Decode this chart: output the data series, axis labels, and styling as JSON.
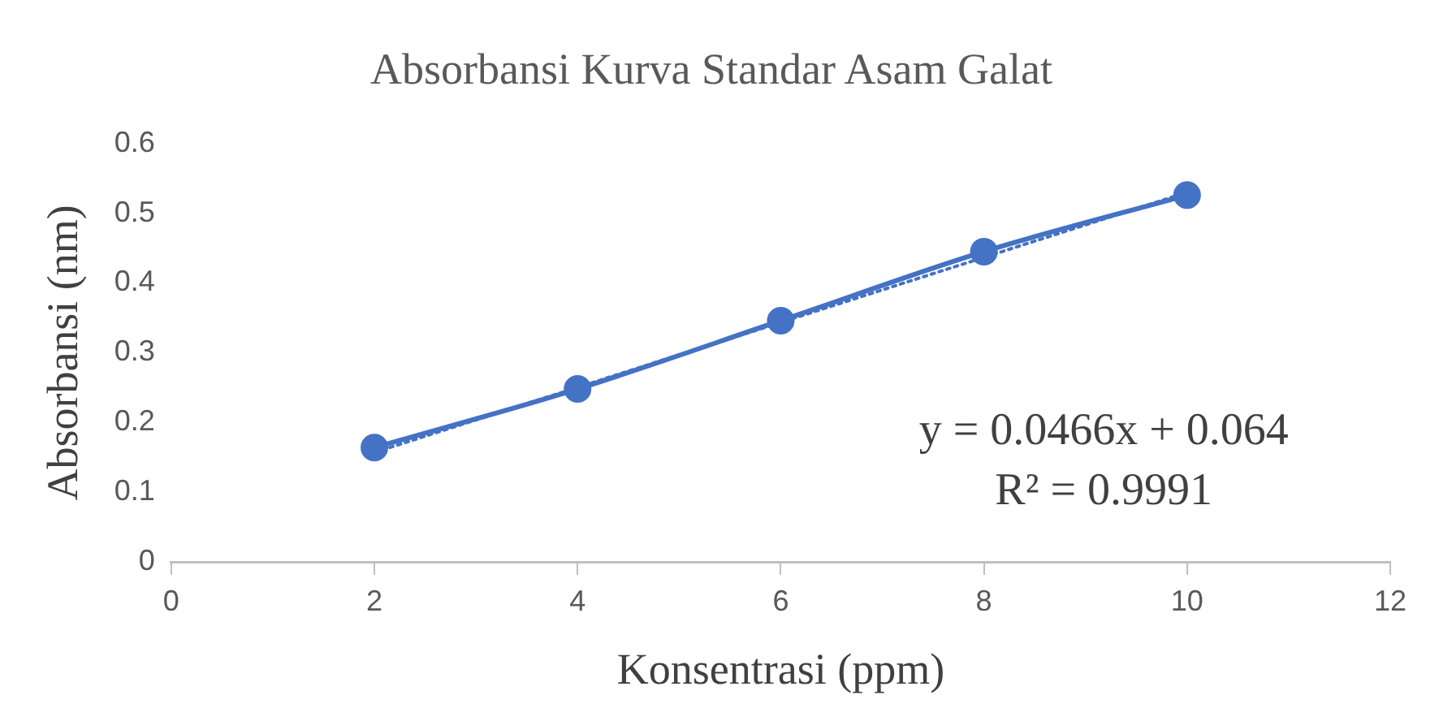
{
  "chart_data": {
    "type": "line",
    "title": "Absorbansi Kurva Standar Asam Galat",
    "xlabel": "Konsentrasi (ppm)",
    "ylabel": "Absorbansi (nm)",
    "xlim": [
      0,
      12
    ],
    "xticks": [
      0,
      2,
      4,
      6,
      8,
      10,
      12
    ],
    "ylim": [
      0,
      0.6
    ],
    "yticks": [
      0,
      0.1,
      0.2,
      0.3,
      0.4,
      0.5,
      0.6
    ],
    "grid": false,
    "legend": false,
    "annotations": [
      "y = 0.0466x + 0.064",
      "R² = 0.9991"
    ],
    "series": [
      {
        "type": "line",
        "x": [
          2,
          4,
          6,
          8,
          10
        ],
        "values": [
          0.164,
          0.248,
          0.346,
          0.445,
          0.526
        ],
        "color": "#4472c4",
        "marker": "circle",
        "line_style": "solid"
      },
      {
        "type": "line",
        "x": [
          2,
          10
        ],
        "values": [
          0.157,
          0.53
        ],
        "color": "#4472c4",
        "marker": "none",
        "line_style": "dotted"
      }
    ]
  }
}
